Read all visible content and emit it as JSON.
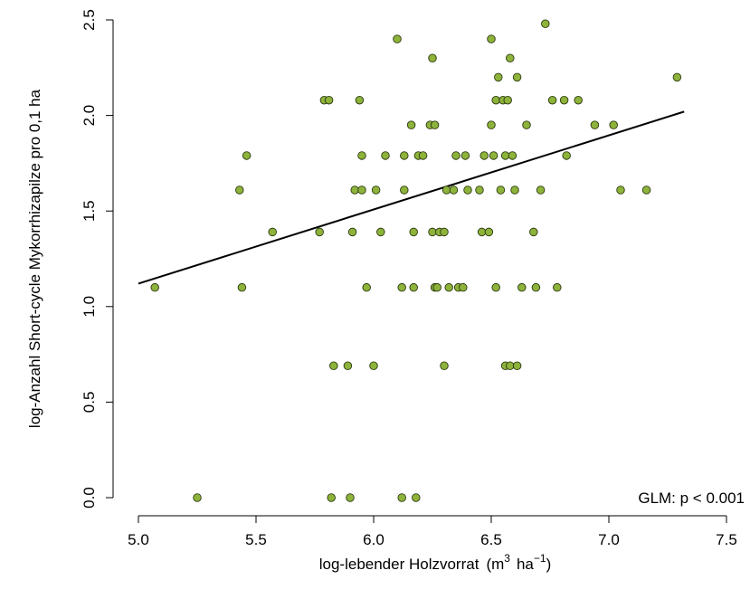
{
  "chart_data": {
    "type": "scatter",
    "xlabel": "log-lebender Holzvorrat",
    "xlabel_unit_base": "m",
    "xlabel_unit_sup1": "3",
    "xlabel_unit_mid": "ha",
    "xlabel_unit_sup2": "−1",
    "ylabel": "log-Anzahl Short-cycle Mykorrhizapilze pro 0,1 ha",
    "xlim": [
      5.0,
      7.5
    ],
    "ylim": [
      0.0,
      2.5
    ],
    "x_ticks": [
      "5.0",
      "5.5",
      "6.0",
      "6.5",
      "7.0",
      "7.5"
    ],
    "y_ticks": [
      "0.0",
      "0.5",
      "1.0",
      "1.5",
      "2.0",
      "2.5"
    ],
    "annotation": "GLM: p < 0.001",
    "point_color": "#8db33a",
    "grid": false,
    "fit_line": {
      "x": [
        5.0,
        7.32
      ],
      "y": [
        1.12,
        2.02
      ]
    },
    "points": [
      [
        5.07,
        1.1
      ],
      [
        5.25,
        0.0
      ],
      [
        5.43,
        1.61
      ],
      [
        5.44,
        1.1
      ],
      [
        5.46,
        1.79
      ],
      [
        5.57,
        1.39
      ],
      [
        5.77,
        1.39
      ],
      [
        5.79,
        2.08
      ],
      [
        5.81,
        2.08
      ],
      [
        5.82,
        0.0
      ],
      [
        5.83,
        0.69
      ],
      [
        5.89,
        0.69
      ],
      [
        5.9,
        0.0
      ],
      [
        5.91,
        1.39
      ],
      [
        5.92,
        1.61
      ],
      [
        5.94,
        2.08
      ],
      [
        5.95,
        1.61
      ],
      [
        5.95,
        1.79
      ],
      [
        5.97,
        1.1
      ],
      [
        6.0,
        0.69
      ],
      [
        6.01,
        1.61
      ],
      [
        6.03,
        1.39
      ],
      [
        6.05,
        1.79
      ],
      [
        6.1,
        2.4
      ],
      [
        6.12,
        1.1
      ],
      [
        6.12,
        0.0
      ],
      [
        6.13,
        1.61
      ],
      [
        6.13,
        1.79
      ],
      [
        6.16,
        1.95
      ],
      [
        6.17,
        1.39
      ],
      [
        6.17,
        1.1
      ],
      [
        6.18,
        0.0
      ],
      [
        6.19,
        1.79
      ],
      [
        6.21,
        1.79
      ],
      [
        6.24,
        1.95
      ],
      [
        6.25,
        2.3
      ],
      [
        6.25,
        1.39
      ],
      [
        6.26,
        1.1
      ],
      [
        6.26,
        1.95
      ],
      [
        6.27,
        1.1
      ],
      [
        6.28,
        1.39
      ],
      [
        6.3,
        0.69
      ],
      [
        6.3,
        1.39
      ],
      [
        6.31,
        1.61
      ],
      [
        6.32,
        1.1
      ],
      [
        6.34,
        1.61
      ],
      [
        6.35,
        1.79
      ],
      [
        6.36,
        1.1
      ],
      [
        6.38,
        1.1
      ],
      [
        6.39,
        1.79
      ],
      [
        6.4,
        1.61
      ],
      [
        6.45,
        1.61
      ],
      [
        6.46,
        1.39
      ],
      [
        6.47,
        1.79
      ],
      [
        6.49,
        1.39
      ],
      [
        6.5,
        2.4
      ],
      [
        6.5,
        1.95
      ],
      [
        6.51,
        1.79
      ],
      [
        6.52,
        2.08
      ],
      [
        6.52,
        1.1
      ],
      [
        6.53,
        2.2
      ],
      [
        6.54,
        1.61
      ],
      [
        6.55,
        2.08
      ],
      [
        6.56,
        0.69
      ],
      [
        6.56,
        1.79
      ],
      [
        6.57,
        2.08
      ],
      [
        6.58,
        0.69
      ],
      [
        6.58,
        2.3
      ],
      [
        6.59,
        1.79
      ],
      [
        6.6,
        1.61
      ],
      [
        6.61,
        0.69
      ],
      [
        6.61,
        2.2
      ],
      [
        6.63,
        1.1
      ],
      [
        6.65,
        1.95
      ],
      [
        6.68,
        1.39
      ],
      [
        6.69,
        1.1
      ],
      [
        6.71,
        1.61
      ],
      [
        6.73,
        2.48
      ],
      [
        6.76,
        2.08
      ],
      [
        6.78,
        1.1
      ],
      [
        6.81,
        2.08
      ],
      [
        6.82,
        1.79
      ],
      [
        6.87,
        2.08
      ],
      [
        6.94,
        1.95
      ],
      [
        7.02,
        1.95
      ],
      [
        7.05,
        1.61
      ],
      [
        7.16,
        1.61
      ],
      [
        7.29,
        2.2
      ]
    ]
  }
}
